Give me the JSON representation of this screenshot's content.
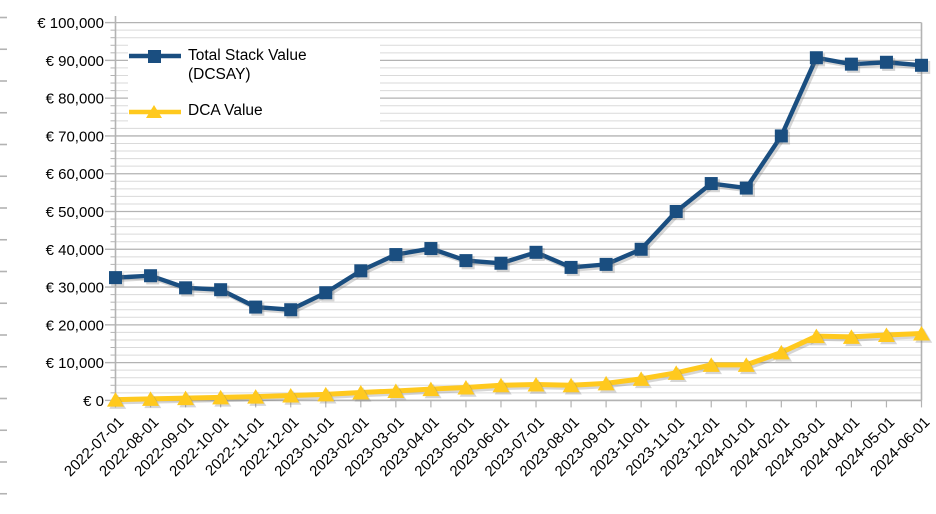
{
  "chart_data": {
    "type": "line",
    "title": "",
    "xlabel": "",
    "ylabel": "",
    "ylim": [
      0,
      100000
    ],
    "y_major_interval": 10000,
    "y_minor_interval": 2000,
    "grid": "horizontal major + minor",
    "legend_position": "top-left inside plot",
    "y_tick_labels": [
      "€ 0",
      "€ 10,000",
      "€ 20,000",
      "€ 30,000",
      "€ 40,000",
      "€ 50,000",
      "€ 60,000",
      "€ 70,000",
      "€ 80,000",
      "€ 90,000",
      "€ 100,000"
    ],
    "categories": [
      "2022-07-01",
      "2022-08-01",
      "2022-09-01",
      "2022-10-01",
      "2022-11-01",
      "2022-12-01",
      "2023-01-01",
      "2023-02-01",
      "2023-03-01",
      "2023-04-01",
      "2023-05-01",
      "2023-06-01",
      "2023-07-01",
      "2023-08-01",
      "2023-09-01",
      "2023-10-01",
      "2023-11-01",
      "2023-12-01",
      "2024-01-01",
      "2024-02-01",
      "2024-03-01",
      "2024-04-01",
      "2024-05-01",
      "2024-06-01"
    ],
    "series": [
      {
        "name": "Total Stack Value (DCSAY)",
        "marker": "square",
        "color": "#1A4E80",
        "values": [
          32500,
          33000,
          29800,
          29300,
          24700,
          24000,
          28500,
          34300,
          38600,
          40200,
          37000,
          36300,
          39200,
          35200,
          36000,
          40000,
          50000,
          57400,
          56200,
          70000,
          90700,
          89000,
          89500,
          88700
        ]
      },
      {
        "name": "DCA Value",
        "marker": "triangle",
        "color": "#FFC91E",
        "values": [
          200,
          400,
          600,
          800,
          1000,
          1300,
          1600,
          2100,
          2500,
          3000,
          3400,
          4000,
          4200,
          4000,
          4500,
          5700,
          7300,
          9400,
          9400,
          12700,
          17000,
          16800,
          17300,
          17700
        ]
      }
    ],
    "colors": {
      "grid_major": "#b3b3b3",
      "grid_minor": "#dadada",
      "axis": "#b3b3b3",
      "text": "#000000",
      "background": "#ffffff"
    }
  }
}
